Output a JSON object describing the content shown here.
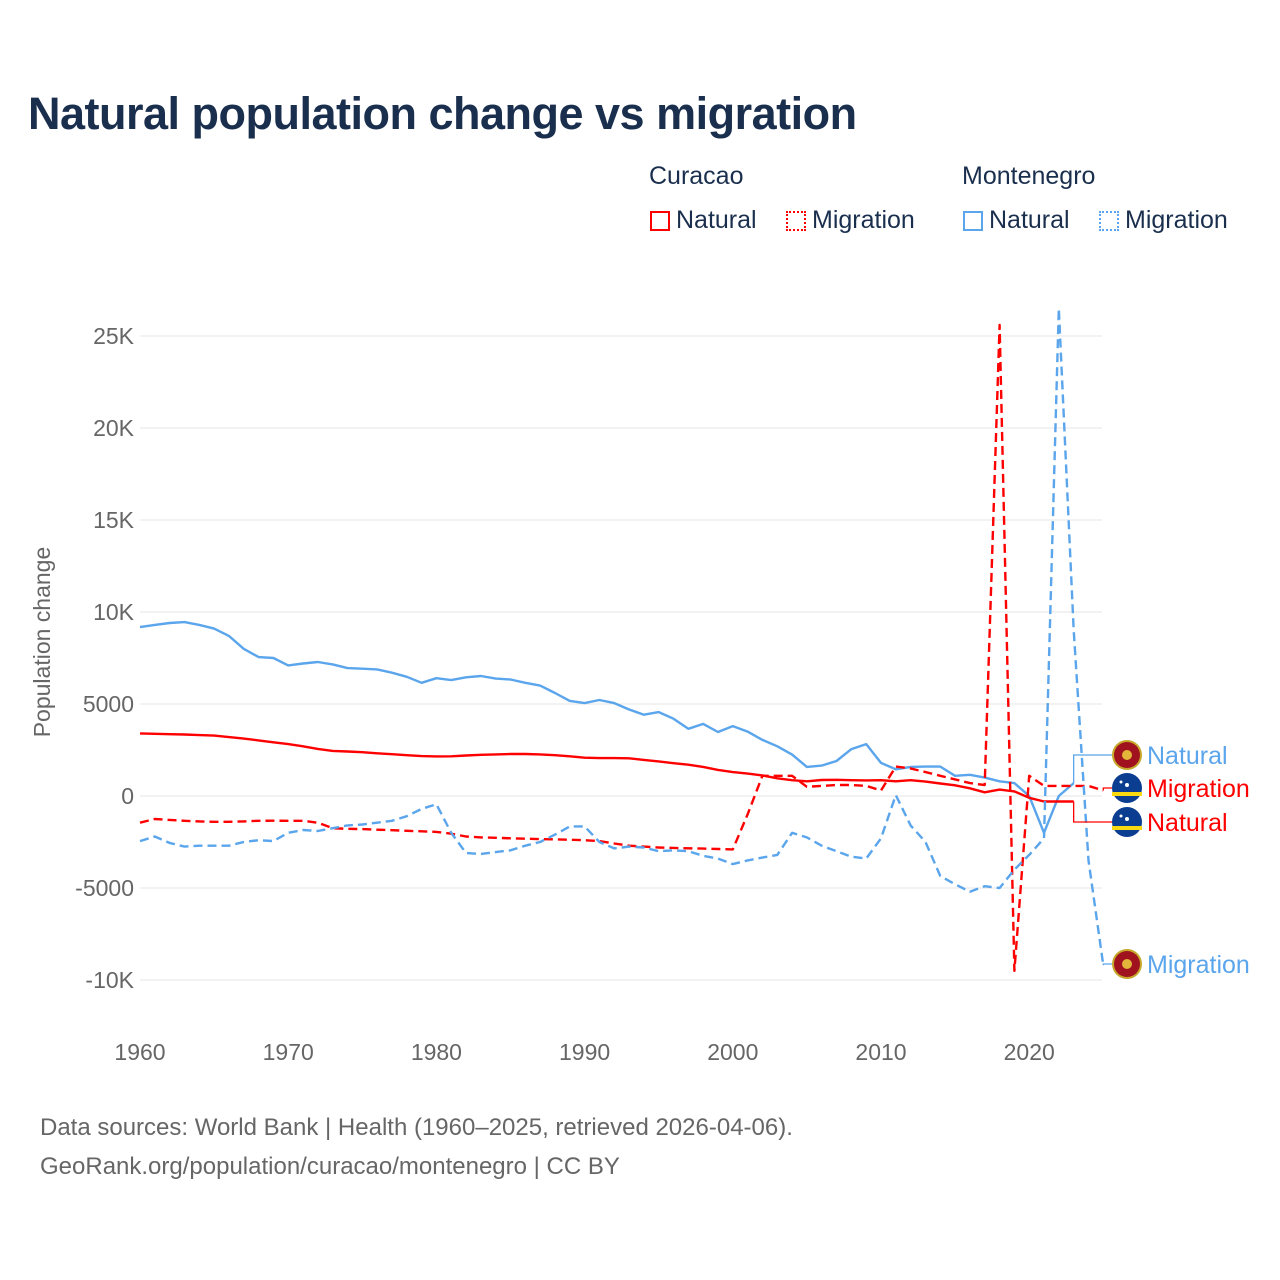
{
  "title": "Natural population change vs migration",
  "legend": {
    "groups": [
      {
        "name": "Curacao",
        "items": [
          {
            "label": "Natural",
            "style": "solid",
            "color": "#ff0000"
          },
          {
            "label": "Migration",
            "style": "dotted",
            "color": "#ff0000"
          }
        ]
      },
      {
        "name": "Montenegro",
        "items": [
          {
            "label": "Natural",
            "style": "solid",
            "color": "#5aa5ec"
          },
          {
            "label": "Migration",
            "style": "dotted",
            "color": "#5aa5ec"
          }
        ]
      }
    ]
  },
  "footer": {
    "line1": "Data sources: World Bank | Health (1960–2025, retrieved 2026-04-06).",
    "line2": "GeoRank.org/population/curacao/montenegro | CC BY"
  },
  "chart_data": {
    "type": "line",
    "title": "Natural population change vs migration",
    "xlabel": "",
    "ylabel": "Population change",
    "xlim": [
      1960,
      2025
    ],
    "ylim": [
      -12000,
      27000
    ],
    "x_ticks": [
      "1960",
      "1970",
      "1980",
      "1990",
      "2000",
      "2010",
      "2020"
    ],
    "y_ticks": [
      {
        "v": 25000,
        "label": "25K"
      },
      {
        "v": 20000,
        "label": "20K"
      },
      {
        "v": 15000,
        "label": "15K"
      },
      {
        "v": 10000,
        "label": "10K"
      },
      {
        "v": 5000,
        "label": "5000"
      },
      {
        "v": 0,
        "label": "0"
      },
      {
        "v": -5000,
        "label": "-5000"
      },
      {
        "v": -10000,
        "label": "-10K"
      }
    ],
    "grid": true,
    "series": [
      {
        "name": "Montenegro Natural",
        "end_label": "Natural",
        "color": "#5aa5ec",
        "dash": false,
        "flag": "montenegro",
        "start": 1960,
        "values": [
          9180,
          9300,
          9400,
          9450,
          9300,
          9100,
          8700,
          8000,
          7550,
          7500,
          7100,
          7200,
          7280,
          7150,
          6950,
          6920,
          6880,
          6700,
          6480,
          6150,
          6400,
          6300,
          6450,
          6520,
          6380,
          6330,
          6150,
          6000,
          5600,
          5170,
          5050,
          5220,
          5050,
          4700,
          4420,
          4560,
          4200,
          3650,
          3920,
          3480,
          3800,
          3500,
          3050,
          2700,
          2250,
          1580,
          1650,
          1900,
          2550,
          2820,
          1800,
          1450,
          1580,
          1600,
          1600,
          1100,
          1150,
          1000,
          800,
          700,
          0,
          -2000,
          0,
          700
        ]
      },
      {
        "name": "Curacao Migration",
        "end_label": "Migration",
        "color": "#ff0000",
        "dash": true,
        "flag": "curacao",
        "start": 1960,
        "values": [
          -1450,
          -1250,
          -1300,
          -1350,
          -1380,
          -1400,
          -1400,
          -1380,
          -1350,
          -1340,
          -1350,
          -1350,
          -1450,
          -1750,
          -1780,
          -1800,
          -1830,
          -1860,
          -1890,
          -1920,
          -1950,
          -2050,
          -2200,
          -2250,
          -2270,
          -2300,
          -2320,
          -2340,
          -2360,
          -2380,
          -2400,
          -2450,
          -2580,
          -2700,
          -2750,
          -2800,
          -2820,
          -2840,
          -2860,
          -2880,
          -2900,
          -1000,
          1100,
          1100,
          1100,
          500,
          550,
          600,
          600,
          550,
          300,
          1600,
          1500,
          1300,
          1100,
          900,
          700,
          600,
          25600,
          -9500,
          1100,
          550,
          550,
          550,
          550,
          300
        ]
      },
      {
        "name": "Curacao Natural",
        "end_label": "Natural",
        "color": "#ff0000",
        "dash": false,
        "flag": "curacao",
        "start": 1960,
        "values": [
          3400,
          3380,
          3360,
          3340,
          3310,
          3280,
          3200,
          3120,
          3020,
          2920,
          2820,
          2700,
          2560,
          2450,
          2420,
          2380,
          2320,
          2270,
          2220,
          2170,
          2150,
          2160,
          2200,
          2240,
          2260,
          2280,
          2280,
          2260,
          2220,
          2160,
          2080,
          2060,
          2060,
          2050,
          1960,
          1880,
          1780,
          1700,
          1580,
          1420,
          1300,
          1220,
          1120,
          960,
          860,
          800,
          870,
          880,
          860,
          850,
          860,
          800,
          860,
          780,
          680,
          580,
          420,
          200,
          350,
          250,
          -100,
          -300,
          -300,
          -300
        ]
      },
      {
        "name": "Montenegro Migration",
        "end_label": "Migration",
        "color": "#5aa5ec",
        "dash": true,
        "flag": "montenegro",
        "start": 1960,
        "values": [
          -2450,
          -2200,
          -2550,
          -2750,
          -2700,
          -2700,
          -2700,
          -2500,
          -2400,
          -2450,
          -2000,
          -1850,
          -1900,
          -1750,
          -1600,
          -1550,
          -1450,
          -1350,
          -1100,
          -700,
          -450,
          -2000,
          -3100,
          -3150,
          -3050,
          -2950,
          -2700,
          -2500,
          -2100,
          -1650,
          -1650,
          -2500,
          -2850,
          -2750,
          -2800,
          -3000,
          -2950,
          -3000,
          -3250,
          -3400,
          -3700,
          -3500,
          -3350,
          -3200,
          -2000,
          -2250,
          -2700,
          -3000,
          -3300,
          -3400,
          -2300,
          50,
          -1600,
          -2500,
          -4350,
          -4800,
          -5200,
          -4900,
          -5000,
          -4000,
          -3200,
          -2300,
          26500,
          9000,
          -3500,
          -9200
        ]
      }
    ]
  }
}
